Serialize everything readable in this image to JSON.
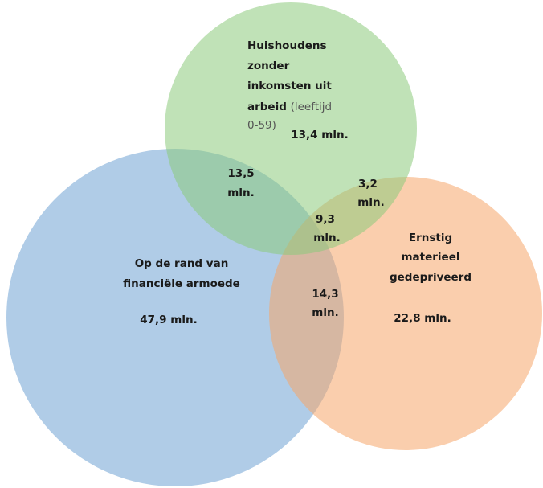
{
  "sets": [
    {
      "label_lines": [
        "Huishoudens",
        "zonder",
        "inkomsten uit",
        "arbeid"
      ],
      "note_lines": [
        "(leeftijd",
        "0-59)"
      ],
      "value": "13,4 mln."
    },
    {
      "label_lines": [
        "Op de rand van",
        "financiële armoede"
      ],
      "value": "47,9 mln."
    },
    {
      "label_lines": [
        "Ernstig",
        "materieel",
        "gedepriveerd"
      ],
      "value": "22,8 mln."
    }
  ],
  "intersections": [
    {
      "lines": [
        "13,5",
        "mln."
      ]
    },
    {
      "lines": [
        "3,2",
        "mln."
      ]
    },
    {
      "lines": [
        "9,3",
        "mln."
      ]
    },
    {
      "lines": [
        "14,3",
        "mln."
      ]
    }
  ]
}
